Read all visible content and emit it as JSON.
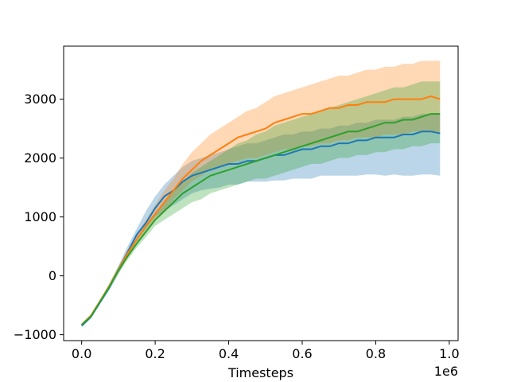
{
  "chart_data": {
    "type": "line",
    "title": "",
    "xlabel": "Timesteps",
    "ylabel": "",
    "x_offset_text": "1e6",
    "xlim": [
      -0.049,
      1.024
    ],
    "ylim": [
      -1100,
      3900
    ],
    "x_ticks": [
      0.0,
      0.2,
      0.4,
      0.6,
      0.8,
      1.0
    ],
    "x_tick_labels": [
      "0.0",
      "0.2",
      "0.4",
      "0.6",
      "0.8",
      "1.0"
    ],
    "y_ticks": [
      -1000,
      0,
      1000,
      2000,
      3000
    ],
    "y_tick_labels": [
      "−1000",
      "0",
      "1000",
      "2000",
      "3000"
    ],
    "grid": false,
    "legend": "none",
    "x": [
      0.0,
      0.025,
      0.05,
      0.075,
      0.1,
      0.125,
      0.15,
      0.175,
      0.2,
      0.225,
      0.25,
      0.275,
      0.3,
      0.325,
      0.35,
      0.375,
      0.4,
      0.425,
      0.45,
      0.475,
      0.5,
      0.525,
      0.55,
      0.575,
      0.6,
      0.625,
      0.65,
      0.675,
      0.7,
      0.725,
      0.75,
      0.775,
      0.8,
      0.825,
      0.85,
      0.875,
      0.9,
      0.925,
      0.95,
      0.975
    ],
    "series": [
      {
        "color": "#1f77b4",
        "mean": [
          -850,
          -700,
          -450,
          -200,
          100,
          400,
          700,
          900,
          1150,
          1350,
          1450,
          1600,
          1700,
          1750,
          1800,
          1850,
          1900,
          1900,
          1950,
          1950,
          2000,
          2050,
          2050,
          2100,
          2150,
          2150,
          2200,
          2200,
          2250,
          2250,
          2300,
          2300,
          2350,
          2350,
          2350,
          2400,
          2400,
          2450,
          2450,
          2420
        ],
        "lower": [
          -850,
          -720,
          -480,
          -250,
          30,
          320,
          600,
          800,
          1000,
          1100,
          1200,
          1300,
          1400,
          1450,
          1480,
          1500,
          1550,
          1550,
          1600,
          1600,
          1600,
          1620,
          1620,
          1650,
          1650,
          1650,
          1700,
          1700,
          1700,
          1700,
          1700,
          1720,
          1720,
          1700,
          1720,
          1700,
          1700,
          1720,
          1720,
          1700
        ],
        "upper": [
          -820,
          -680,
          -420,
          -150,
          170,
          500,
          800,
          1100,
          1350,
          1550,
          1700,
          1850,
          1950,
          2000,
          2050,
          2100,
          2150,
          2200,
          2250,
          2250,
          2300,
          2350,
          2400,
          2400,
          2450,
          2450,
          2500,
          2500,
          2550,
          2550,
          2600,
          2600,
          2650,
          2650,
          2650,
          2700,
          2700,
          2750,
          2750,
          2750
        ]
      },
      {
        "color": "#ff7f0e",
        "mean": [
          -830,
          -680,
          -430,
          -180,
          100,
          380,
          620,
          850,
          1050,
          1250,
          1450,
          1650,
          1800,
          1950,
          2050,
          2150,
          2250,
          2350,
          2400,
          2450,
          2500,
          2600,
          2650,
          2700,
          2750,
          2750,
          2800,
          2850,
          2850,
          2900,
          2900,
          2950,
          2950,
          2950,
          3000,
          3000,
          3000,
          3000,
          3050,
          3000
        ],
        "lower": [
          -850,
          -700,
          -460,
          -220,
          50,
          320,
          550,
          760,
          950,
          1100,
          1300,
          1450,
          1600,
          1700,
          1800,
          1850,
          1900,
          1950,
          2000,
          2000,
          2050,
          2100,
          2150,
          2150,
          2200,
          2200,
          2250,
          2250,
          2300,
          2300,
          2350,
          2350,
          2350,
          2400,
          2400,
          2400,
          2450,
          2450,
          2450,
          2450
        ],
        "upper": [
          -810,
          -650,
          -400,
          -130,
          160,
          440,
          700,
          950,
          1200,
          1450,
          1650,
          1900,
          2100,
          2250,
          2400,
          2500,
          2600,
          2700,
          2800,
          2850,
          2950,
          3050,
          3100,
          3150,
          3200,
          3250,
          3300,
          3350,
          3400,
          3400,
          3450,
          3500,
          3500,
          3550,
          3550,
          3600,
          3600,
          3650,
          3650,
          3650
        ]
      },
      {
        "color": "#2ca02c",
        "mean": [
          -830,
          -690,
          -440,
          -190,
          90,
          330,
          550,
          750,
          950,
          1100,
          1250,
          1400,
          1500,
          1600,
          1700,
          1750,
          1800,
          1850,
          1900,
          1950,
          2000,
          2050,
          2100,
          2150,
          2200,
          2250,
          2300,
          2350,
          2400,
          2450,
          2450,
          2500,
          2550,
          2600,
          2600,
          2650,
          2650,
          2700,
          2750,
          2750
        ],
        "lower": [
          -850,
          -710,
          -470,
          -230,
          40,
          270,
          480,
          660,
          850,
          950,
          1050,
          1150,
          1250,
          1300,
          1400,
          1450,
          1500,
          1550,
          1600,
          1650,
          1650,
          1700,
          1750,
          1800,
          1850,
          1900,
          1900,
          1950,
          2000,
          2000,
          2050,
          2050,
          2100,
          2100,
          2150,
          2150,
          2200,
          2200,
          2250,
          2250
        ],
        "upper": [
          -810,
          -660,
          -400,
          -140,
          150,
          400,
          620,
          850,
          1050,
          1250,
          1450,
          1600,
          1750,
          1850,
          1950,
          2050,
          2150,
          2250,
          2300,
          2400,
          2450,
          2550,
          2600,
          2650,
          2700,
          2750,
          2800,
          2850,
          2900,
          2950,
          3000,
          3050,
          3100,
          3150,
          3200,
          3200,
          3250,
          3300,
          3300,
          3300
        ]
      }
    ]
  }
}
